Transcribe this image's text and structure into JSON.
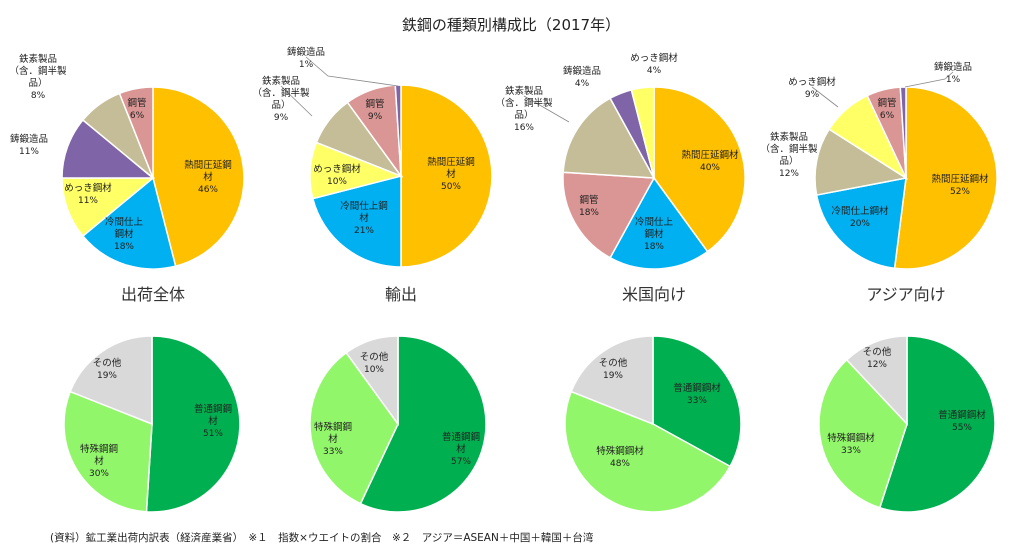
{
  "title": "鉄鋼の種類別構成比（2017年）",
  "footnote": "(資料）鉱工業出荷内訳表（経済産業省）　※１　指数×ウエイトの割合　※２　アジア＝ASEAN＋中国＋韓国＋台湾",
  "colors": {
    "hot_rolled": "#FFC000",
    "cold_finished": "#00B0F0",
    "plated": "#FFFF66",
    "cast_forged": "#7F64A8",
    "wire": "#C4BD97",
    "pipe": "#DA9694",
    "ordinary": "#00B050",
    "special": "#92F66B",
    "other": "#D9D9D9"
  },
  "chart_data": [
    {
      "type": "pie",
      "group": "出荷全体",
      "slices": [
        {
          "key": "hot_rolled",
          "label_lines": [
            "熱間圧延鋼",
            "材"
          ],
          "value": 46,
          "pct": "46%"
        },
        {
          "key": "cold_finished",
          "label_lines": [
            "冷間仕上",
            "鋼材"
          ],
          "value": 18,
          "pct": "18%"
        },
        {
          "key": "plated",
          "label_lines": [
            "めっき鋼材"
          ],
          "value": 11,
          "pct": "11%"
        },
        {
          "key": "cast_forged",
          "label_lines": [
            "鋳鍛造品"
          ],
          "value": 11,
          "pct": "11%"
        },
        {
          "key": "wire",
          "label_lines": [
            "鉄素製品",
            "（含．鋼半製",
            "品）"
          ],
          "value": 8,
          "pct": "8%"
        },
        {
          "key": "pipe",
          "label_lines": [
            "鋼管"
          ],
          "value": 6,
          "pct": "6%"
        }
      ]
    },
    {
      "type": "pie",
      "group": "輸出",
      "slices": [
        {
          "key": "hot_rolled",
          "label_lines": [
            "熱間圧延鋼",
            "材"
          ],
          "value": 50,
          "pct": "50%"
        },
        {
          "key": "cold_finished",
          "label_lines": [
            "冷間仕上鋼",
            "材"
          ],
          "value": 21,
          "pct": "21%"
        },
        {
          "key": "plated",
          "label_lines": [
            "めっき鋼材"
          ],
          "value": 10,
          "pct": "10%"
        },
        {
          "key": "wire",
          "label_lines": [
            "鉄素製品",
            "（含．鋼半製",
            "品）"
          ],
          "value": 9,
          "pct": "9%"
        },
        {
          "key": "pipe",
          "label_lines": [
            "鋼管"
          ],
          "value": 9,
          "pct": "9%"
        },
        {
          "key": "cast_forged",
          "label_lines": [
            "鋳鍛造品"
          ],
          "value": 1,
          "pct": "1%"
        }
      ]
    },
    {
      "type": "pie",
      "group": "米国向け",
      "slices": [
        {
          "key": "hot_rolled",
          "label_lines": [
            "熱間圧延鋼材"
          ],
          "value": 40,
          "pct": "40%"
        },
        {
          "key": "cold_finished",
          "label_lines": [
            "冷間仕上",
            "鋼材"
          ],
          "value": 18,
          "pct": "18%"
        },
        {
          "key": "pipe",
          "label_lines": [
            "鋼管"
          ],
          "value": 18,
          "pct": "18%"
        },
        {
          "key": "wire",
          "label_lines": [
            "鉄素製品",
            "（含．鋼半製",
            "品）"
          ],
          "value": 16,
          "pct": "16%"
        },
        {
          "key": "cast_forged",
          "label_lines": [
            "鋳鍛造品"
          ],
          "value": 4,
          "pct": "4%"
        },
        {
          "key": "plated",
          "label_lines": [
            "めっき鋼材"
          ],
          "value": 4,
          "pct": "4%"
        }
      ]
    },
    {
      "type": "pie",
      "group": "アジア向け",
      "slices": [
        {
          "key": "hot_rolled",
          "label_lines": [
            "熱間圧延鋼材"
          ],
          "value": 52,
          "pct": "52%"
        },
        {
          "key": "cold_finished",
          "label_lines": [
            "冷間仕上鋼材"
          ],
          "value": 20,
          "pct": "20%"
        },
        {
          "key": "wire",
          "label_lines": [
            "鉄素製品",
            "（含．鋼半製",
            "品）"
          ],
          "value": 12,
          "pct": "12%"
        },
        {
          "key": "plated",
          "label_lines": [
            "めっき鋼材"
          ],
          "value": 9,
          "pct": "9%"
        },
        {
          "key": "pipe",
          "label_lines": [
            "鋼管"
          ],
          "value": 6,
          "pct": "6%"
        },
        {
          "key": "cast_forged",
          "label_lines": [
            "鋳鍛造品"
          ],
          "value": 1,
          "pct": "1%"
        }
      ]
    },
    {
      "type": "pie",
      "group": "出荷全体",
      "slices": [
        {
          "key": "ordinary",
          "label_lines": [
            "普通鋼鋼",
            "材"
          ],
          "value": 51,
          "pct": "51%"
        },
        {
          "key": "special",
          "label_lines": [
            "特殊鋼鋼",
            "材"
          ],
          "value": 30,
          "pct": "30%"
        },
        {
          "key": "other",
          "label_lines": [
            "その他"
          ],
          "value": 19,
          "pct": "19%"
        }
      ]
    },
    {
      "type": "pie",
      "group": "輸出",
      "slices": [
        {
          "key": "ordinary",
          "label_lines": [
            "普通鋼鋼",
            "材"
          ],
          "value": 57,
          "pct": "57%"
        },
        {
          "key": "special",
          "label_lines": [
            "特殊鋼鋼",
            "材"
          ],
          "value": 33,
          "pct": "33%"
        },
        {
          "key": "other",
          "label_lines": [
            "その他"
          ],
          "value": 10,
          "pct": "10%"
        }
      ]
    },
    {
      "type": "pie",
      "group": "米国向け",
      "slices": [
        {
          "key": "ordinary",
          "label_lines": [
            "普通鋼鋼材"
          ],
          "value": 33,
          "pct": "33%"
        },
        {
          "key": "special",
          "label_lines": [
            "特殊鋼鋼材"
          ],
          "value": 48,
          "pct": "48%"
        },
        {
          "key": "other",
          "label_lines": [
            "その他"
          ],
          "value": 19,
          "pct": "19%"
        }
      ]
    },
    {
      "type": "pie",
      "group": "アジア向け",
      "slices": [
        {
          "key": "ordinary",
          "label_lines": [
            "普通鋼鋼材"
          ],
          "value": 55,
          "pct": "55%"
        },
        {
          "key": "special",
          "label_lines": [
            "特殊鋼鋼材"
          ],
          "value": 33,
          "pct": "33%"
        },
        {
          "key": "other",
          "label_lines": [
            "その他"
          ],
          "value": 12,
          "pct": "12%"
        }
      ]
    }
  ]
}
